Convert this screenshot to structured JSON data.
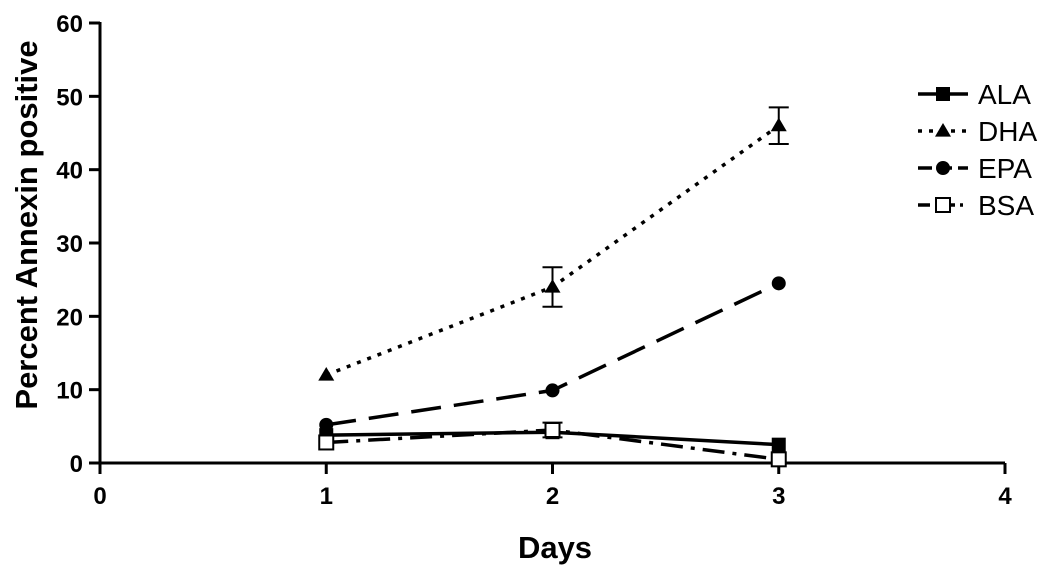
{
  "chart_data": {
    "type": "line",
    "title": "",
    "xlabel": "Days",
    "ylabel": "Percent Annexin positive",
    "xlim": [
      0,
      4
    ],
    "ylim": [
      0,
      60
    ],
    "xticks": [
      0,
      1,
      2,
      3,
      4
    ],
    "yticks": [
      0,
      10,
      20,
      30,
      40,
      50,
      60
    ],
    "grid": false,
    "legend_position": "right",
    "series": [
      {
        "name": "ALA",
        "marker": "filled-square",
        "line_style": "solid",
        "x": [
          1,
          2,
          3
        ],
        "y": [
          3.8,
          4.2,
          2.5
        ],
        "error": [
          0,
          0,
          0
        ]
      },
      {
        "name": "DHA",
        "marker": "filled-triangle",
        "line_style": "dotted",
        "x": [
          1,
          2,
          3
        ],
        "y": [
          12.0,
          24.0,
          46.0
        ],
        "error": [
          0,
          2.7,
          2.5
        ]
      },
      {
        "name": "EPA",
        "marker": "filled-circle",
        "line_style": "long-dash",
        "x": [
          1,
          2,
          3
        ],
        "y": [
          5.2,
          9.9,
          24.5
        ],
        "error": [
          0,
          0,
          0
        ]
      },
      {
        "name": "BSA",
        "marker": "open-square",
        "line_style": "dash-dot",
        "x": [
          1,
          2,
          3
        ],
        "y": [
          2.8,
          4.5,
          0.5
        ],
        "error": [
          0,
          1.0,
          0
        ]
      }
    ]
  }
}
